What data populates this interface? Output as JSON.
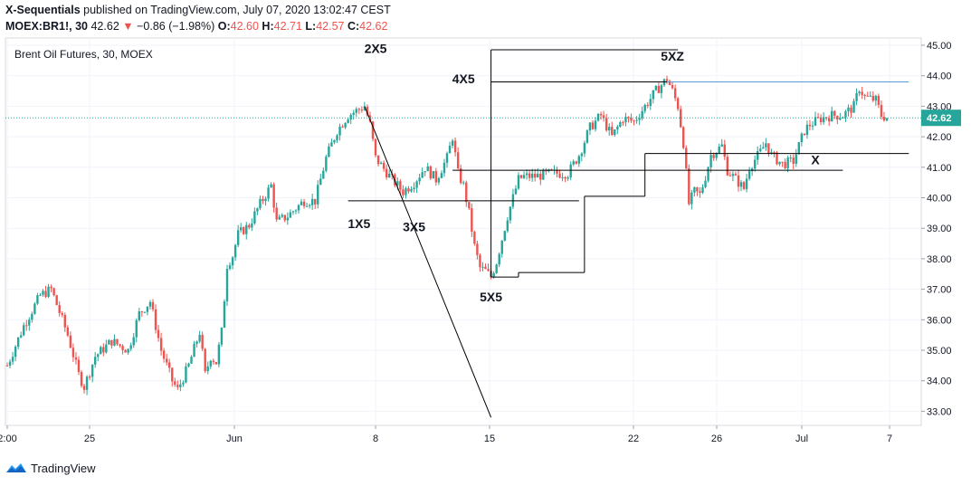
{
  "header": {
    "author": "X-Sequentials",
    "published_text": "published on TradingView.com, July 07, 2020 13:02:47 CEST",
    "symbol": "MOEX:BR1!, 30",
    "last": "42.62",
    "arrow": "▼",
    "change": "−0.86 (−1.98%)",
    "o_label": "O:",
    "o_value": "42.60",
    "h_label": "H:",
    "h_value": "42.71",
    "l_label": "L:",
    "l_value": "42.57",
    "c_label": "C:",
    "c_value": "42.62"
  },
  "footer": {
    "brand": "TradingView",
    "icon": "tradingview-logo-icon"
  },
  "colors": {
    "up": "#26a69a",
    "down": "#ef5350",
    "price_line": "#26a69a",
    "blue_line": "#5b9bd5"
  },
  "chart_data": {
    "type": "candlestick",
    "title": "Brent Oil Futures, 30, MOEX",
    "ylim": [
      32.7,
      45.3
    ],
    "y_ticks": [
      "45.00",
      "44.00",
      "43.00",
      "42.00",
      "41.00",
      "40.00",
      "39.00",
      "38.00",
      "37.00",
      "36.00",
      "35.00",
      "34.00",
      "33.00"
    ],
    "x_ticks": [
      "2:00",
      "25",
      "Jun",
      "8",
      "15",
      "22",
      "26",
      "Jul",
      "7"
    ],
    "last_price": 42.62,
    "last_price_label": "42.62",
    "path": [
      [
        0,
        34.5
      ],
      [
        3,
        35.8
      ],
      [
        6,
        36.8
      ],
      [
        8,
        37.0
      ],
      [
        11,
        35.5
      ],
      [
        13,
        34.2
      ],
      [
        14,
        33.8
      ],
      [
        16,
        34.8
      ],
      [
        19,
        35.3
      ],
      [
        22,
        35.0
      ],
      [
        24,
        36.2
      ],
      [
        26,
        36.6
      ],
      [
        28,
        35.0
      ],
      [
        30,
        34.0
      ],
      [
        31,
        33.7
      ],
      [
        33,
        34.5
      ],
      [
        35,
        35.6
      ],
      [
        36,
        34.2
      ],
      [
        37,
        34.8
      ],
      [
        38,
        34.6
      ],
      [
        39,
        35.6
      ],
      [
        40,
        37.8
      ],
      [
        41,
        38.1
      ],
      [
        42,
        38.8
      ],
      [
        44,
        39.1
      ],
      [
        46,
        39.8
      ],
      [
        48,
        40.4
      ],
      [
        49,
        39.2
      ],
      [
        51,
        39.4
      ],
      [
        54,
        39.9
      ],
      [
        56,
        39.9
      ],
      [
        58,
        41.3
      ],
      [
        60,
        42.2
      ],
      [
        62,
        42.7
      ],
      [
        64,
        42.9
      ],
      [
        65,
        43.0
      ],
      [
        66,
        42.4
      ],
      [
        67,
        41.3
      ],
      [
        70,
        40.6
      ],
      [
        72,
        40.2
      ],
      [
        74,
        40.5
      ],
      [
        76,
        41.0
      ],
      [
        78,
        40.6
      ],
      [
        80,
        41.3
      ],
      [
        81,
        42.0
      ],
      [
        82,
        40.8
      ],
      [
        83,
        40.4
      ],
      [
        84,
        39.5
      ],
      [
        85,
        38.4
      ],
      [
        86,
        37.7
      ],
      [
        87,
        37.6
      ],
      [
        88,
        37.4
      ],
      [
        89,
        37.9
      ],
      [
        91,
        39.4
      ],
      [
        93,
        40.6
      ],
      [
        94,
        40.7
      ],
      [
        96,
        40.7
      ],
      [
        99,
        40.8
      ],
      [
        102,
        40.8
      ],
      [
        104,
        41.4
      ],
      [
        106,
        42.3
      ],
      [
        108,
        42.7
      ],
      [
        110,
        42.0
      ],
      [
        112,
        42.6
      ],
      [
        114,
        42.5
      ],
      [
        116,
        43.0
      ],
      [
        118,
        43.5
      ],
      [
        120,
        43.9
      ],
      [
        121,
        43.5
      ],
      [
        122,
        43.0
      ],
      [
        123,
        41.8
      ],
      [
        124,
        39.8
      ],
      [
        125,
        40.2
      ],
      [
        126,
        40.1
      ],
      [
        127,
        40.7
      ],
      [
        128,
        41.4
      ],
      [
        130,
        41.7
      ],
      [
        131,
        40.9
      ],
      [
        133,
        40.5
      ],
      [
        134,
        40.3
      ],
      [
        135,
        41.0
      ],
      [
        137,
        41.5
      ],
      [
        138,
        41.8
      ],
      [
        139,
        41.4
      ],
      [
        141,
        41.1
      ],
      [
        143,
        41.2
      ],
      [
        145,
        42.2
      ],
      [
        146,
        42.4
      ],
      [
        148,
        42.6
      ],
      [
        150,
        42.7
      ],
      [
        152,
        42.7
      ],
      [
        154,
        43.0
      ],
      [
        155,
        43.6
      ],
      [
        156,
        43.3
      ],
      [
        158,
        43.2
      ],
      [
        159,
        42.7
      ],
      [
        160,
        42.62
      ]
    ],
    "annotations": [
      "2X5",
      "4X5",
      "5XZ",
      "1X5",
      "3X5",
      "5X5",
      "X"
    ]
  }
}
